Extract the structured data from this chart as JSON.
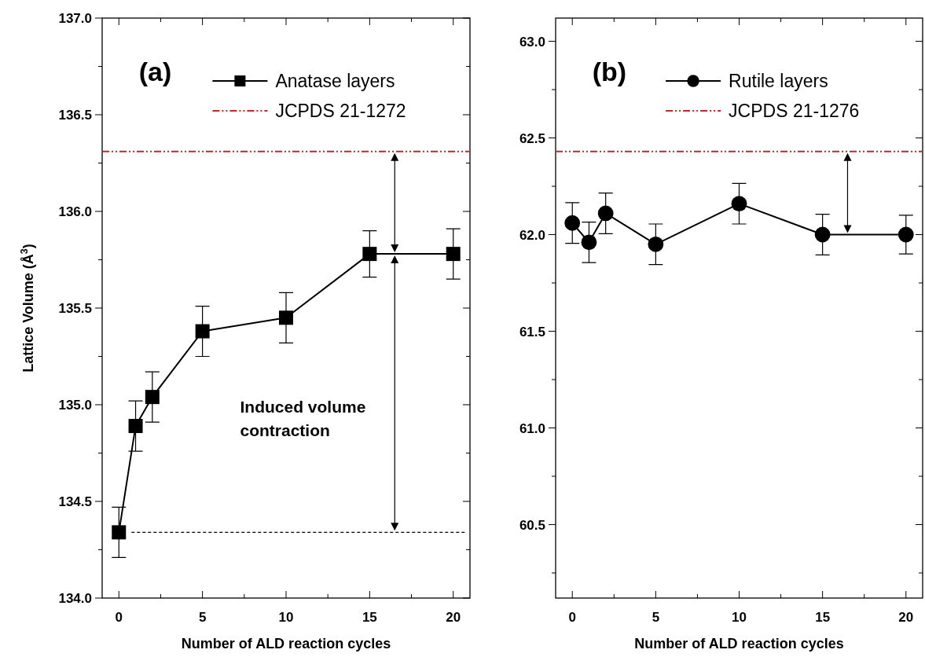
{
  "chart_data": [
    {
      "type": "line",
      "title": "(a)",
      "xlabel": "Number of ALD reaction cycles",
      "ylabel": "Lattice Volume (Å$^{3}$)",
      "marker": "square",
      "legend": "top",
      "grid": false,
      "x": [
        0,
        1,
        2,
        5,
        10,
        15,
        20
      ],
      "series": [
        {
          "name": "Anatase layers",
          "color": "#000000",
          "values": [
            134.34,
            134.89,
            135.04,
            135.38,
            135.45,
            135.78,
            135.78
          ],
          "errors": [
            0.13,
            0.13,
            0.13,
            0.13,
            0.13,
            0.12,
            0.13
          ]
        }
      ],
      "ref_lines": [
        {
          "axis": "y",
          "value": 136.31,
          "label": "JCPDS 21-1272",
          "color": "#c0282d",
          "line_style": "dashed"
        },
        {
          "axis": "y",
          "value": 134.34,
          "color": "#000000",
          "line_style": "dotted"
        }
      ],
      "annotations": [
        "Induced volume contraction"
      ],
      "xlim": [
        -1,
        21
      ],
      "xticks": [
        0,
        {
          "value": 2.5,
          "label": null
        },
        5,
        {
          "value": 7.5,
          "label": null
        },
        10,
        {
          "value": 12.5,
          "label": null
        },
        15,
        {
          "value": 17.5,
          "label": null
        },
        20
      ],
      "ylim": [
        134,
        137
      ],
      "yticks": [
        {
          "value": 134,
          "label": "134.0"
        },
        {
          "value": 134.25,
          "label": null
        },
        134.5,
        {
          "value": 134.75,
          "label": null
        },
        {
          "value": 135,
          "label": "135.0"
        },
        {
          "value": 135.25,
          "label": null
        },
        135.5,
        {
          "value": 135.75,
          "label": null
        },
        {
          "value": 136,
          "label": "136.0"
        },
        {
          "value": 136.25,
          "label": null
        },
        136.5,
        {
          "value": 136.75,
          "label": null
        },
        {
          "value": 137,
          "label": "137.0"
        }
      ]
    },
    {
      "type": "line",
      "title": "(b)",
      "xlabel": "Number of ALD reaction cycles",
      "marker": "circle",
      "legend": "top",
      "grid": false,
      "x": [
        0,
        1,
        2,
        5,
        10,
        15,
        20
      ],
      "series": [
        {
          "name": "Rutile layers",
          "color": "#000000",
          "values": [
            62.06,
            61.96,
            62.11,
            61.95,
            62.16,
            62.0,
            62.0
          ],
          "errors": [
            0.105,
            0.105,
            0.105,
            0.105,
            0.105,
            0.105,
            0.1
          ]
        }
      ],
      "ref_lines": [
        {
          "axis": "y",
          "value": 62.43,
          "label": "JCPDS 21-1276",
          "color": "#c0282d",
          "line_style": "dashed"
        }
      ],
      "xlim": [
        -1,
        21
      ],
      "xticks": [
        0,
        {
          "value": 2.5,
          "label": null
        },
        5,
        {
          "value": 7.5,
          "label": null
        },
        10,
        {
          "value": 12.5,
          "label": null
        },
        15,
        {
          "value": 17.5,
          "label": null
        },
        20
      ],
      "ylim": [
        60.12,
        63.12
      ],
      "yticks": [
        {
          "value": 60.25,
          "label": null
        },
        60.5,
        {
          "value": 60.75,
          "label": null
        },
        {
          "value": 61,
          "label": "61.0"
        },
        {
          "value": 61.25,
          "label": null
        },
        61.5,
        {
          "value": 61.75,
          "label": null
        },
        {
          "value": 62,
          "label": "62.0"
        },
        {
          "value": 62.25,
          "label": null
        },
        62.5,
        {
          "value": 62.75,
          "label": null
        },
        {
          "value": 63,
          "label": "63.0"
        }
      ]
    }
  ]
}
